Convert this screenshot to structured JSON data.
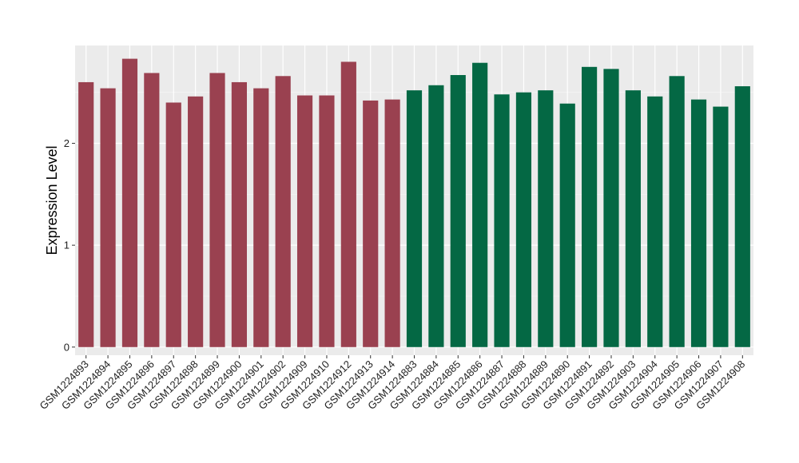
{
  "chart_data": {
    "type": "bar",
    "ylabel": "Expression Level",
    "xlabel": "",
    "ylim": [
      -0.08,
      2.96
    ],
    "yticks": [
      0,
      1,
      2
    ],
    "grid": true,
    "panel_background": "#ebebeb",
    "categories": [
      "GSM1224893",
      "GSM1224894",
      "GSM1224895",
      "GSM1224896",
      "GSM1224897",
      "GSM1224898",
      "GSM1224899",
      "GSM1224900",
      "GSM1224901",
      "GSM1224902",
      "GSM1224909",
      "GSM1224910",
      "GSM1224912",
      "GSM1224913",
      "GSM1224914",
      "GSM1224883",
      "GSM1224884",
      "GSM1224885",
      "GSM1224886",
      "GSM1224887",
      "GSM1224888",
      "GSM1224889",
      "GSM1224890",
      "GSM1224891",
      "GSM1224892",
      "GSM1224903",
      "GSM1224904",
      "GSM1224905",
      "GSM1224906",
      "GSM1224907",
      "GSM1224908"
    ],
    "values": [
      2.6,
      2.54,
      2.83,
      2.69,
      2.4,
      2.46,
      2.69,
      2.6,
      2.54,
      2.66,
      2.47,
      2.47,
      2.8,
      2.42,
      2.43,
      2.52,
      2.57,
      2.67,
      2.79,
      2.48,
      2.5,
      2.52,
      2.39,
      2.75,
      2.73,
      2.52,
      2.46,
      2.66,
      2.43,
      2.36,
      2.56
    ],
    "bar_colors": [
      "#9a4150",
      "#9a4150",
      "#9a4150",
      "#9a4150",
      "#9a4150",
      "#9a4150",
      "#9a4150",
      "#9a4150",
      "#9a4150",
      "#9a4150",
      "#9a4150",
      "#9a4150",
      "#9a4150",
      "#9a4150",
      "#9a4150",
      "#046844",
      "#046844",
      "#046844",
      "#046844",
      "#046844",
      "#046844",
      "#046844",
      "#046844",
      "#046844",
      "#046844",
      "#046844",
      "#046844",
      "#046844",
      "#046844",
      "#046844",
      "#046844"
    ]
  }
}
